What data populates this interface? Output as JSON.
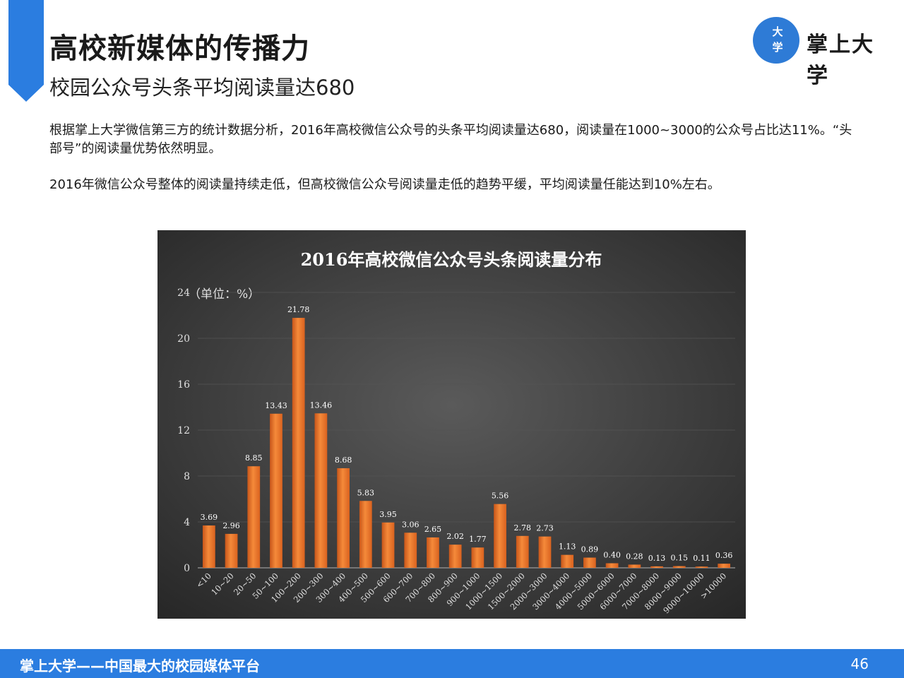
{
  "slide": {
    "title": "高校新媒体的传播力",
    "subtitle": "校园公众号头条平均阅读量达680",
    "paragraphs": [
      "根据掌上大学微信第三方的统计数据分析，2016年高校微信公众号的头条平均阅读量达680，阅读量在1000~3000的公众号占比达11%。“头部号”的阅读量优势依然明显。",
      "2016年微信公众号整体的阅读量持续走低，但高校微信公众号阅读量走低的趋势平缓，平均阅读量任能达到10%左右。"
    ],
    "logo": {
      "badge_line1": "大",
      "badge_line2": "学",
      "text": "掌上大学"
    },
    "footer": {
      "text": "掌上大学——中国最大的校园媒体平台",
      "page": "46"
    }
  },
  "colors": {
    "accent": "#2b7de0",
    "bar": "#f07a2a",
    "chart_bg": "#3a3a3a"
  },
  "chart_data": {
    "type": "bar",
    "title": "2016年高校微信公众号头条阅读量分布",
    "ylabel": "（单位：%）",
    "ylim": [
      0,
      24
    ],
    "yticks": [
      0,
      4,
      8,
      12,
      16,
      20,
      24
    ],
    "grid": true,
    "categories": [
      "<10",
      "10~20",
      "20~50",
      "50~100",
      "100~200",
      "200~300",
      "300~400",
      "400~500",
      "500~600",
      "600~700",
      "700~800",
      "800~900",
      "900~1000",
      "1000~1500",
      "1500~2000",
      "2000~3000",
      "3000~4000",
      "4000~5000",
      "5000~6000",
      "6000~7000",
      "7000~8000",
      "8000~9000",
      "9000~10000",
      ">10000"
    ],
    "values": [
      3.69,
      2.96,
      8.85,
      13.43,
      21.78,
      13.46,
      8.68,
      5.83,
      3.95,
      3.06,
      2.65,
      2.02,
      1.77,
      5.56,
      2.78,
      2.73,
      1.13,
      0.89,
      0.4,
      0.28,
      0.13,
      0.15,
      0.11,
      0.36
    ],
    "labels": [
      "3.69",
      "2.96",
      "8.85",
      "13.43",
      "21.78",
      "13.46",
      "8.68",
      "5.83",
      "3.95",
      "3.06",
      "2.65",
      "2.02",
      "1.77",
      "5.56",
      "2.78",
      "2.73",
      "1.13",
      "0.89",
      "0.40",
      "0.28",
      "0.13",
      "0.15",
      "0.11",
      "0.36"
    ]
  }
}
